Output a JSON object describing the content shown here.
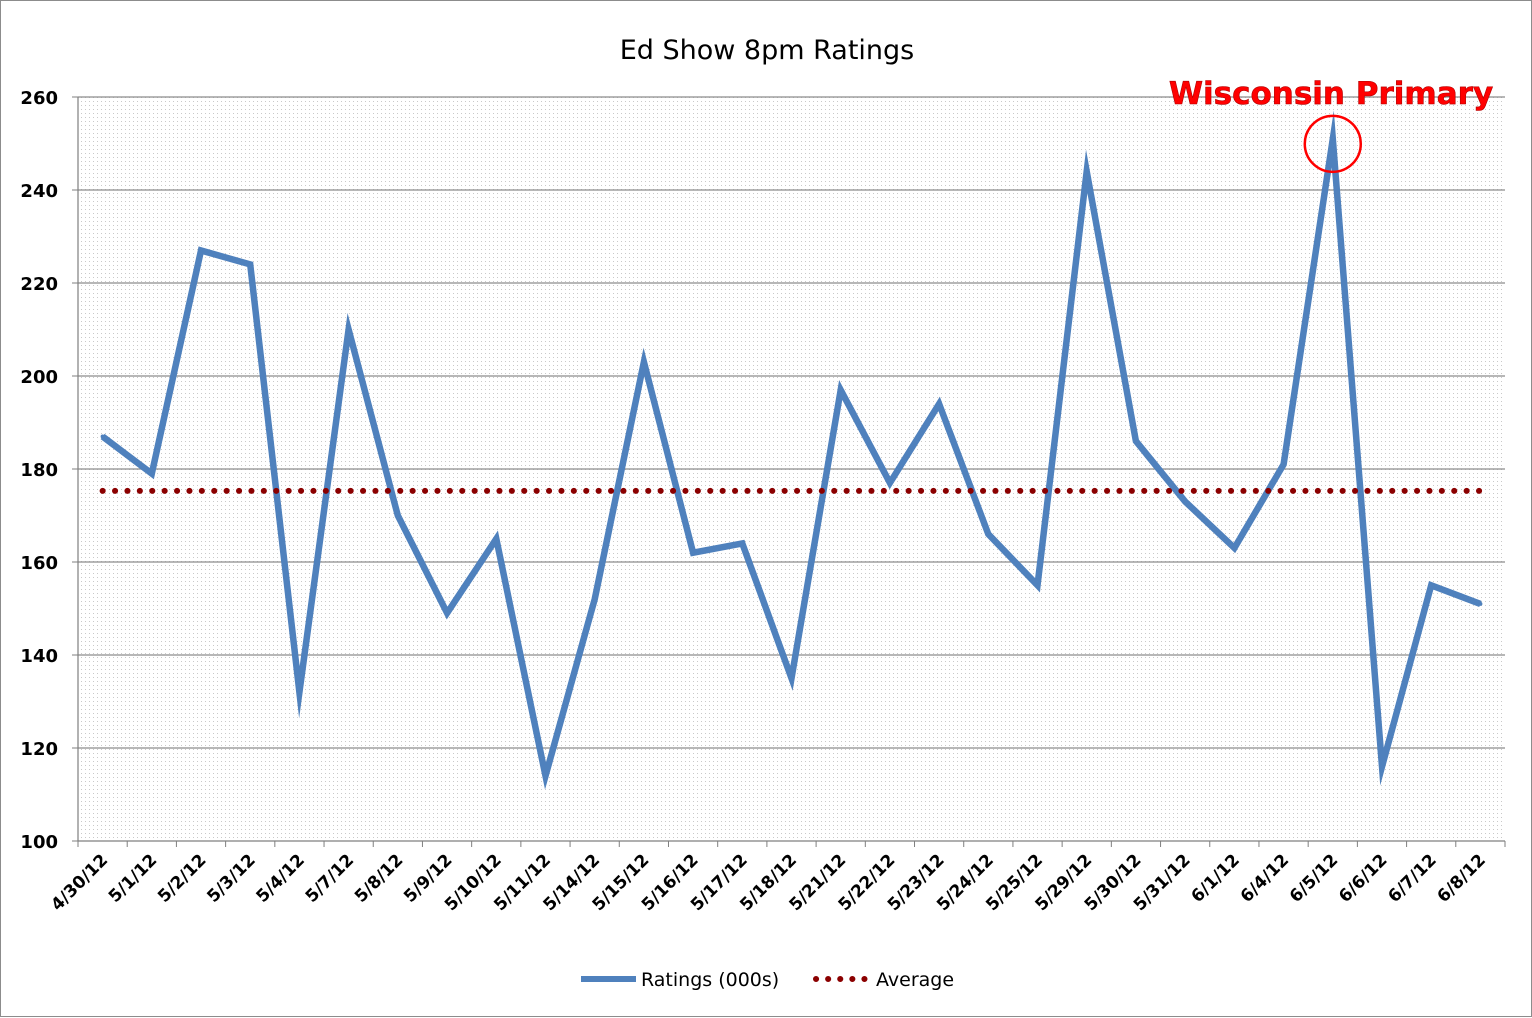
{
  "chart_data": {
    "type": "line",
    "title": "Ed Show 8pm Ratings",
    "xlabel": "",
    "ylabel": "",
    "ylim": [
      100,
      260
    ],
    "yticks": [
      100,
      120,
      140,
      160,
      180,
      200,
      220,
      240,
      260
    ],
    "grid": true,
    "legend_position": "bottom",
    "categories": [
      "4/30/12",
      "5/1/12",
      "5/2/12",
      "5/3/12",
      "5/4/12",
      "5/7/12",
      "5/8/12",
      "5/9/12",
      "5/10/12",
      "5/11/12",
      "5/14/12",
      "5/15/12",
      "5/16/12",
      "5/17/12",
      "5/18/12",
      "5/21/12",
      "5/22/12",
      "5/23/12",
      "5/24/12",
      "5/25/12",
      "5/29/12",
      "5/30/12",
      "5/31/12",
      "6/1/12",
      "6/4/12",
      "6/5/12",
      "6/6/12",
      "6/7/12",
      "6/8/12"
    ],
    "series": [
      {
        "name": "Ratings (000s)",
        "color": "#4f81bd",
        "style": "solid",
        "values": [
          187,
          179,
          227,
          224,
          132,
          210,
          170,
          149,
          165,
          114,
          152,
          203,
          162,
          164,
          135,
          197,
          177,
          194,
          166,
          155,
          244,
          186,
          173,
          163,
          181,
          251,
          116,
          155,
          151
        ]
      },
      {
        "name": "Average",
        "color": "#8b0000",
        "style": "dotted",
        "values": [
          175.3,
          175.3,
          175.3,
          175.3,
          175.3,
          175.3,
          175.3,
          175.3,
          175.3,
          175.3,
          175.3,
          175.3,
          175.3,
          175.3,
          175.3,
          175.3,
          175.3,
          175.3,
          175.3,
          175.3,
          175.3,
          175.3,
          175.3,
          175.3,
          175.3,
          175.3,
          175.3,
          175.3,
          175.3
        ]
      }
    ],
    "annotation": {
      "text": "Wisconsin Primary",
      "target_category": "6/5/12",
      "target_value": 251,
      "color": "#ff0000"
    }
  }
}
